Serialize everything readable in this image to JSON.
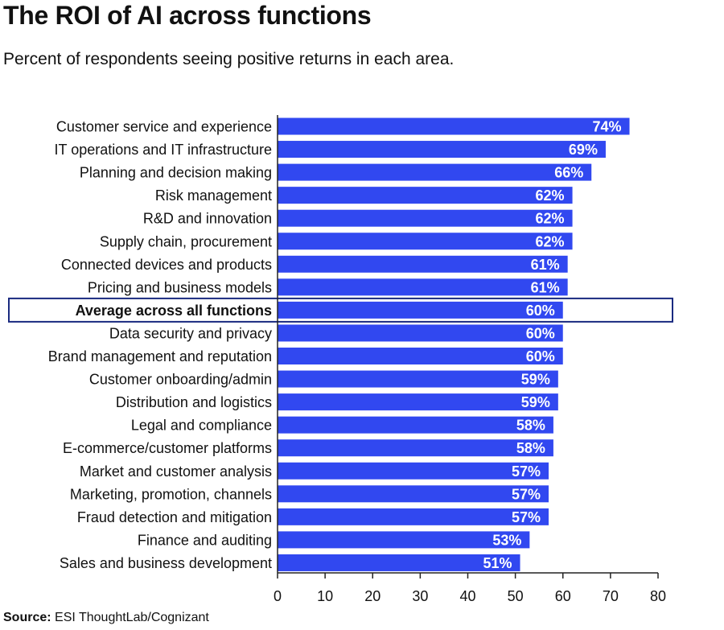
{
  "title": "The ROI of AI across functions",
  "subtitle": "Percent of respondents seeing positive returns in each area.",
  "source": {
    "label": "Source:",
    "text": " ESI ThoughtLab/Cognizant"
  },
  "colors": {
    "bar": "#3148f0",
    "highlight_border": "#1a2a80",
    "axis": "#222222",
    "text": "#111111",
    "bar_label": "#ffffff"
  },
  "chart_data": {
    "type": "bar",
    "orientation": "horizontal",
    "categories": [
      "Customer service and experience",
      "IT operations and IT infrastructure",
      "Planning and decision making",
      "Risk management",
      "R&D and innovation",
      "Supply chain, procurement",
      "Connected devices and products",
      "Pricing and business models",
      "Average across all functions",
      "Data security and privacy",
      "Brand management and reputation",
      "Customer onboarding/admin",
      "Distribution and logistics",
      "Legal and compliance",
      "E-commerce/customer platforms",
      "Market and customer analysis",
      "Marketing, promotion, channels",
      "Fraud detection and mitigation",
      "Finance and auditing",
      "Sales and business development"
    ],
    "values": [
      74,
      69,
      66,
      62,
      62,
      62,
      61,
      61,
      60,
      60,
      60,
      59,
      59,
      58,
      58,
      57,
      57,
      57,
      53,
      51
    ],
    "value_labels": [
      "74%",
      "69%",
      "66%",
      "62%",
      "62%",
      "62%",
      "61%",
      "61%",
      "60%",
      "60%",
      "60%",
      "59%",
      "59%",
      "58%",
      "58%",
      "57%",
      "57%",
      "57%",
      "53%",
      "51%"
    ],
    "highlighted_category": "Average across all functions",
    "xlim": [
      0,
      80
    ],
    "xticks": [
      0,
      10,
      20,
      30,
      40,
      50,
      60,
      70,
      80
    ],
    "grid": false,
    "legend": "none"
  }
}
